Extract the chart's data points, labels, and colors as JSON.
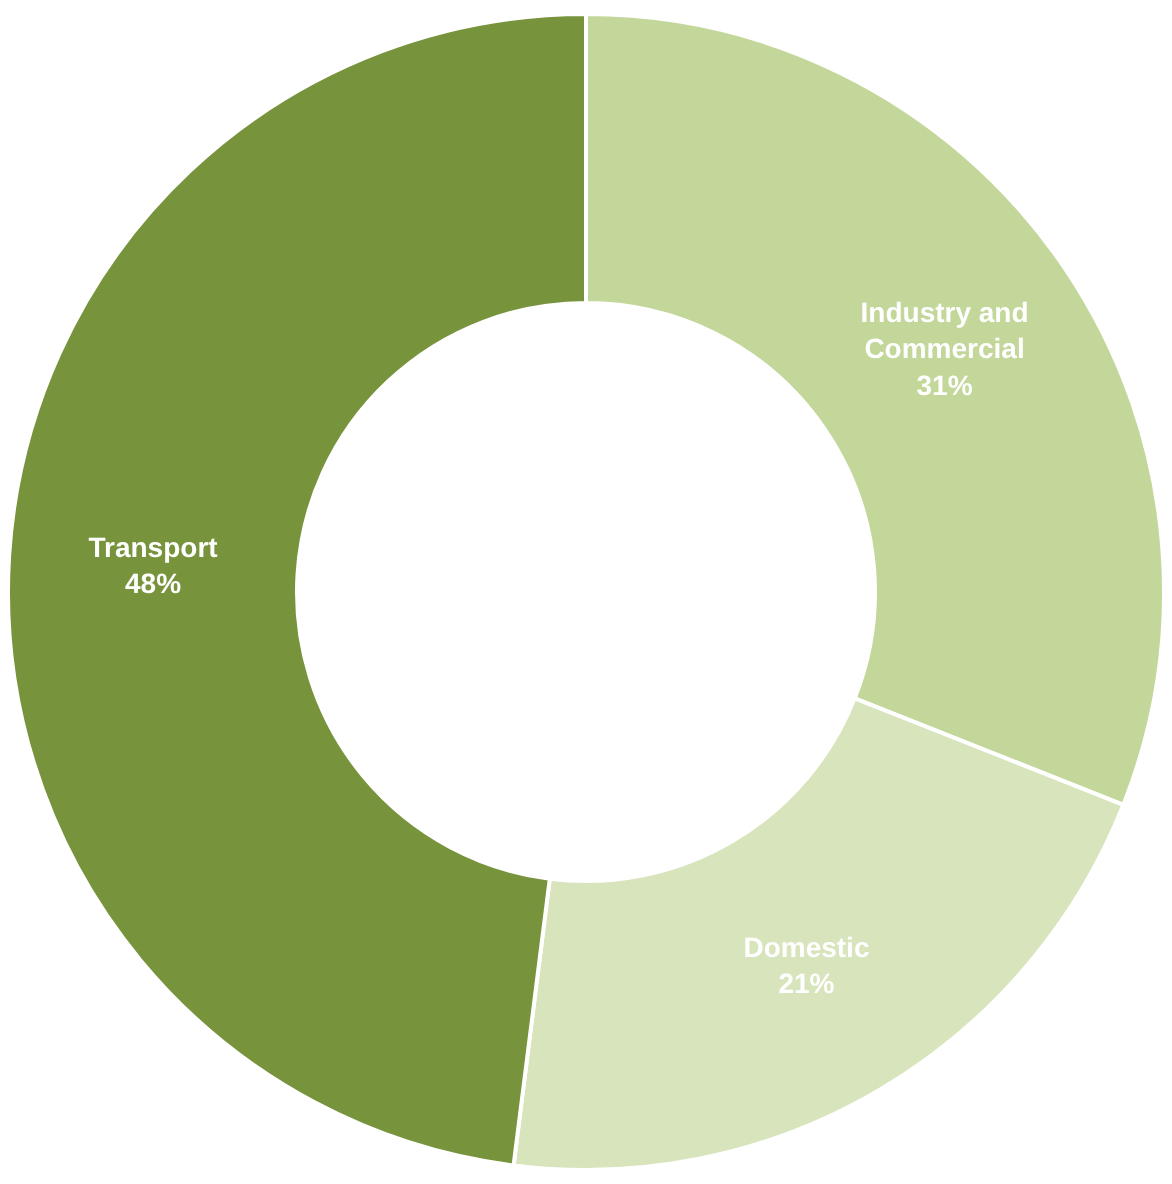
{
  "chart_data": {
    "type": "donut",
    "categories": [
      "Industry and Commercial",
      "Domestic",
      "Transport"
    ],
    "values": [
      31,
      21,
      48
    ],
    "value_labels": [
      "31%",
      "21%",
      "48%"
    ],
    "colors": [
      "#c4d79b",
      "#d8e4bc",
      "#77933c"
    ],
    "legend": false
  }
}
